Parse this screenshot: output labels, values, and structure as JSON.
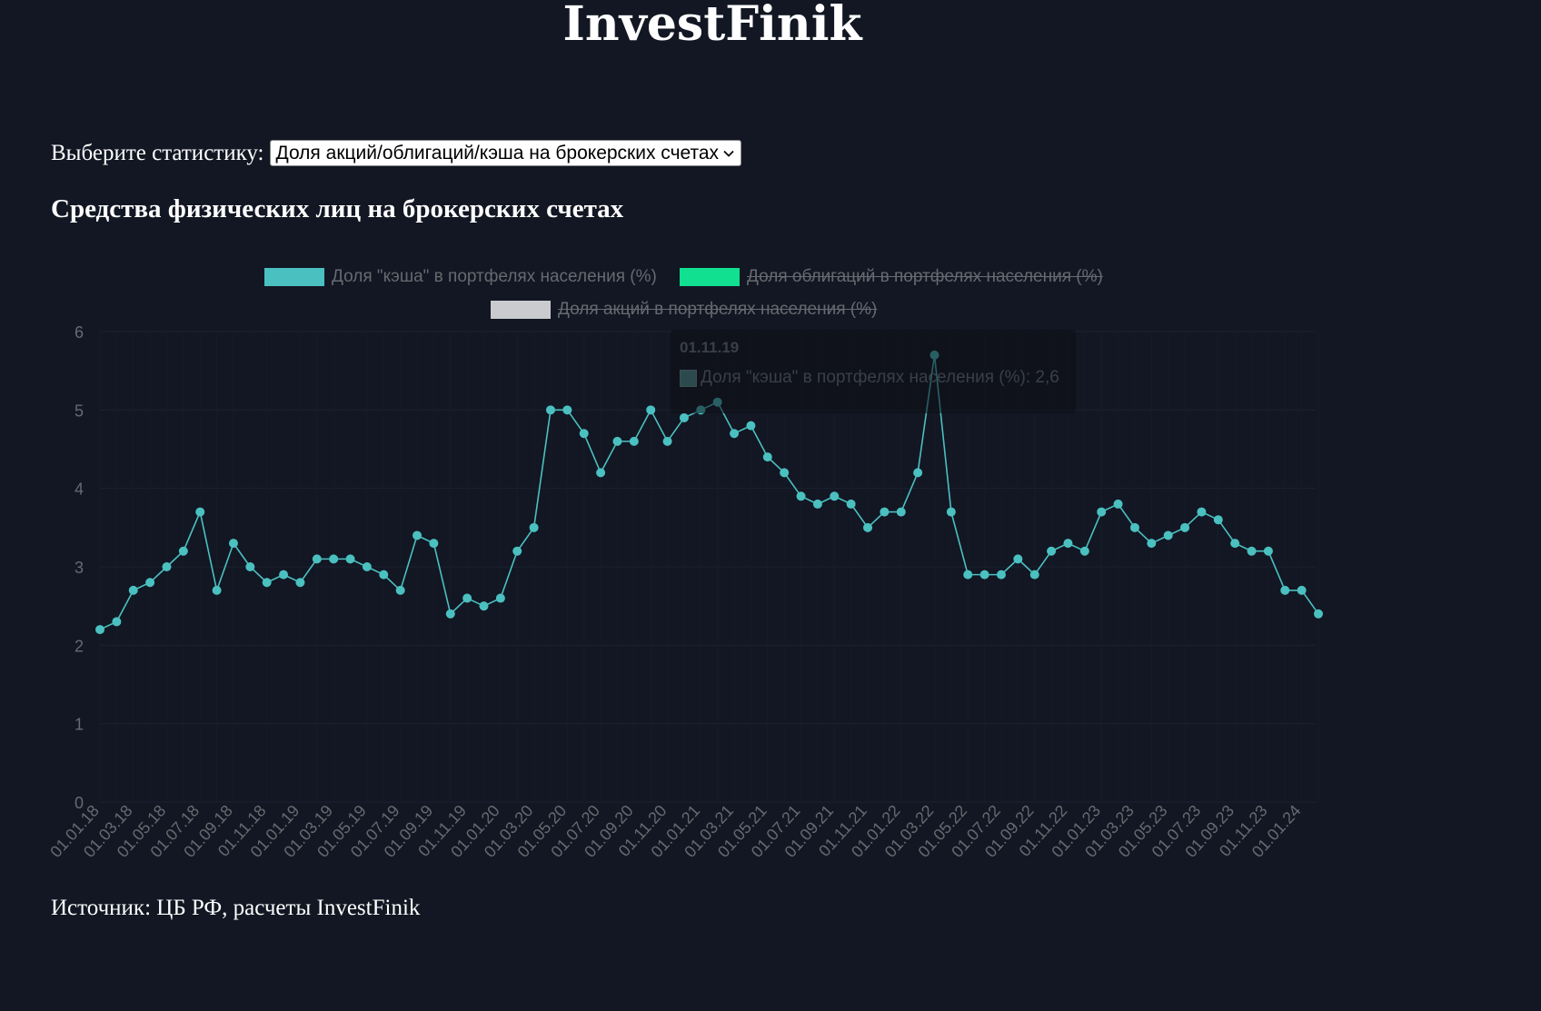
{
  "header": {
    "site_title": "InvestFinik"
  },
  "selector": {
    "label": "Выберите статистику:",
    "selected": "Доля акций/облигаций/кэша на брокерских счетах",
    "icon": "chevron-down-icon"
  },
  "chart_data": {
    "type": "line",
    "title": "Средства физических лиц на брокерских счетах",
    "xlabel": "",
    "ylabel": "",
    "ylim": [
      0,
      6
    ],
    "yticks": [
      "0",
      "1",
      "2",
      "3",
      "4",
      "5",
      "6"
    ],
    "grid": true,
    "legend_placement": "top-center",
    "legend": [
      {
        "name": "Доля \"кэша\" в портфелях населения (%)",
        "color": "#4bc0c0",
        "hidden": false
      },
      {
        "name": "Доля облигаций в портфелях населения (%)",
        "color": "#10e090",
        "hidden": true
      },
      {
        "name": "Доля акций в портфелях населения (%)",
        "color": "#c9cbcf",
        "hidden": true
      }
    ],
    "x": [
      "01.01.18",
      "01.02.18",
      "01.03.18",
      "01.04.18",
      "01.05.18",
      "01.06.18",
      "01.07.18",
      "01.08.18",
      "01.09.18",
      "01.10.18",
      "01.11.18",
      "01.12.18",
      "01.01.19",
      "01.02.19",
      "01.03.19",
      "01.04.19",
      "01.05.19",
      "01.06.19",
      "01.07.19",
      "01.08.19",
      "01.09.19",
      "01.10.19",
      "01.11.19",
      "01.12.19",
      "01.01.20",
      "01.02.20",
      "01.03.20",
      "01.04.20",
      "01.05.20",
      "01.06.20",
      "01.07.20",
      "01.08.20",
      "01.09.20",
      "01.10.20",
      "01.11.20",
      "01.12.20",
      "01.01.21",
      "01.02.21",
      "01.03.21",
      "01.04.21",
      "01.05.21",
      "01.06.21",
      "01.07.21",
      "01.08.21",
      "01.09.21",
      "01.10.21",
      "01.11.21",
      "01.12.21",
      "01.01.22",
      "01.02.22",
      "01.03.22",
      "01.04.22",
      "01.05.22",
      "01.06.22",
      "01.07.22",
      "01.08.22",
      "01.09.22",
      "01.10.22",
      "01.11.22",
      "01.12.22",
      "01.01.23",
      "01.02.23",
      "01.03.23",
      "01.04.23",
      "01.05.23",
      "01.06.23",
      "01.07.23",
      "01.08.23",
      "01.09.23",
      "01.10.23",
      "01.11.23",
      "01.12.23",
      "01.01.24",
      "01.02.24"
    ],
    "x_tick_labels": [
      "01.01.18",
      "01.03.18",
      "01.05.18",
      "01.07.18",
      "01.09.18",
      "01.11.18",
      "01.01.19",
      "01.03.19",
      "01.05.19",
      "01.07.19",
      "01.09.19",
      "01.11.19",
      "01.01.20",
      "01.03.20",
      "01.05.20",
      "01.07.20",
      "01.09.20",
      "01.11.20",
      "01.01.21",
      "01.03.21",
      "01.05.21",
      "01.07.21",
      "01.09.21",
      "01.11.21",
      "01.01.22",
      "01.03.22",
      "01.05.22",
      "01.07.22",
      "01.09.22",
      "01.11.22",
      "01.01.23",
      "01.03.23",
      "01.05.23",
      "01.07.23",
      "01.09.23",
      "01.11.23",
      "01.01.24"
    ],
    "series": [
      {
        "name": "Доля \"кэша\" в портфелях населения (%)",
        "color": "#4bc0c0",
        "values": [
          2.2,
          2.3,
          2.7,
          2.8,
          3.0,
          3.2,
          3.7,
          2.7,
          3.3,
          3.0,
          2.8,
          2.9,
          2.8,
          3.1,
          3.1,
          3.1,
          3.0,
          2.9,
          2.7,
          3.4,
          3.3,
          2.4,
          2.6,
          2.5,
          2.6,
          3.2,
          3.5,
          5.0,
          5.0,
          4.7,
          4.2,
          4.6,
          4.6,
          5.0,
          4.6,
          4.9,
          5.0,
          5.1,
          4.7,
          4.8,
          4.4,
          4.2,
          3.9,
          3.8,
          3.9,
          3.8,
          3.5,
          3.7,
          3.7,
          4.2,
          5.7,
          3.7,
          2.9,
          2.9,
          2.9,
          3.1,
          2.9,
          3.2,
          3.3,
          3.2,
          3.7,
          3.8,
          3.5,
          3.3,
          3.4,
          3.5,
          3.7,
          3.6,
          3.3,
          3.2,
          3.2,
          2.7,
          2.7,
          2.4
        ]
      }
    ],
    "tooltip": {
      "title": "01.11.19",
      "body": "Доля \"кэша\" в портфелях населения (%): 2,6"
    }
  },
  "footer": {
    "source": "Источник: ЦБ РФ, расчеты InvestFinik"
  }
}
